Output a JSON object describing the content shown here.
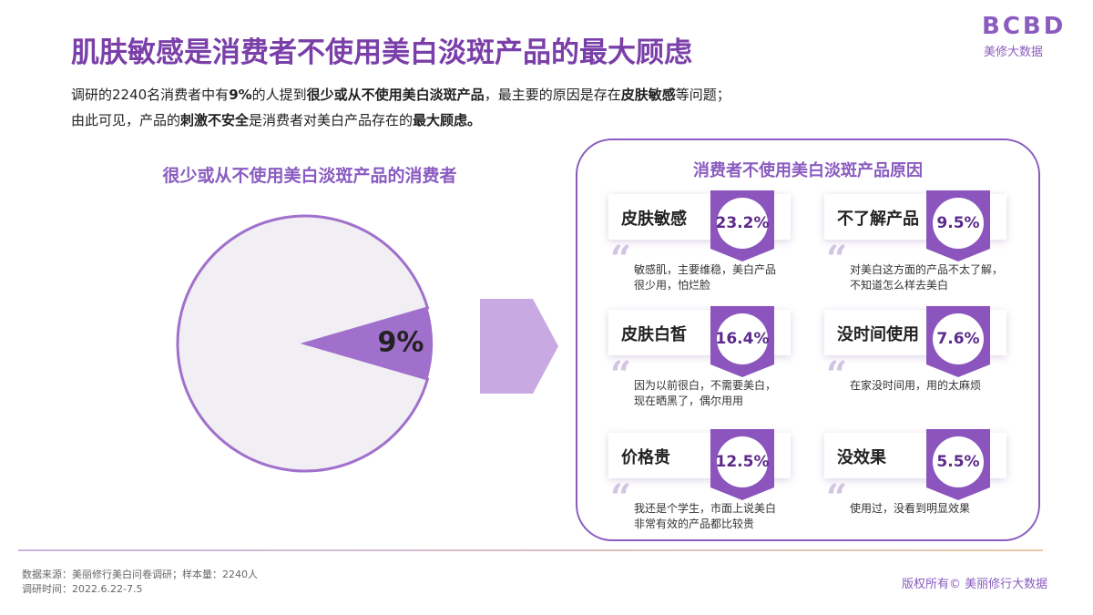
{
  "header": {
    "title": "肌肤敏感是消费者不使用美白淡斑产品的最大顾虑",
    "logo": "BCBD",
    "logo_sub": "美修大数据"
  },
  "intro": [
    [
      {
        "text": "调研的2240名消费者中有",
        "bold": false
      },
      {
        "text": "9%",
        "bold": true
      },
      {
        "text": "的人提到",
        "bold": false
      },
      {
        "text": "很少或从不使用美白淡斑产品",
        "bold": true
      },
      {
        "text": "，最主要的原因是存在",
        "bold": false
      },
      {
        "text": "皮肤敏感",
        "bold": true
      },
      {
        "text": "等问题；",
        "bold": false
      }
    ],
    [
      {
        "text": "由此可见，产品的",
        "bold": false
      },
      {
        "text": "刺激不安全",
        "bold": true
      },
      {
        "text": "是消费者对美白产品存在的",
        "bold": false
      },
      {
        "text": "最大顾虑。",
        "bold": true
      }
    ]
  ],
  "chart_data": {
    "type": "pie",
    "title": "很少或从不使用美白淡斑产品的消费者",
    "values": [
      9,
      91
    ],
    "value_labels": [
      "9%",
      null
    ],
    "colors": [
      "#a070cc",
      "#f1eff3"
    ]
  },
  "reasons": {
    "title": "消费者不使用美白淡斑产品原因",
    "items": [
      {
        "name": "皮肤敏感",
        "share": "23.2%",
        "quote": [
          "敏感肌，主要维稳，美白产品",
          "很少用，怕烂脸"
        ]
      },
      {
        "name": "不了解产品",
        "share": "9.5%",
        "quote": [
          "对美白这方面的产品不太了解，",
          "不知道怎么样去美白"
        ]
      },
      {
        "name": "皮肤白皙",
        "share": "16.4%",
        "quote": [
          "因为以前很白，不需要美白，",
          "现在晒黑了，偶尔用用"
        ]
      },
      {
        "name": "没时间使用",
        "share": "7.6%",
        "quote": [
          "在家没时间用，用的太麻烦"
        ]
      },
      {
        "name": "价格贵",
        "share": "12.5%",
        "quote": [
          "我还是个学生，市面上说美白",
          "非常有效的产品都比较贵"
        ]
      },
      {
        "name": "没效果",
        "share": "5.5%",
        "quote": [
          "使用过，没看到明显效果"
        ]
      }
    ]
  },
  "footer": {
    "source": [
      "数据来源：美丽修行美白问卷调研；样本量：2240人",
      "调研时间：2022.6.22-7.5"
    ],
    "copyright": "版权所有© 美丽修行大数据"
  }
}
